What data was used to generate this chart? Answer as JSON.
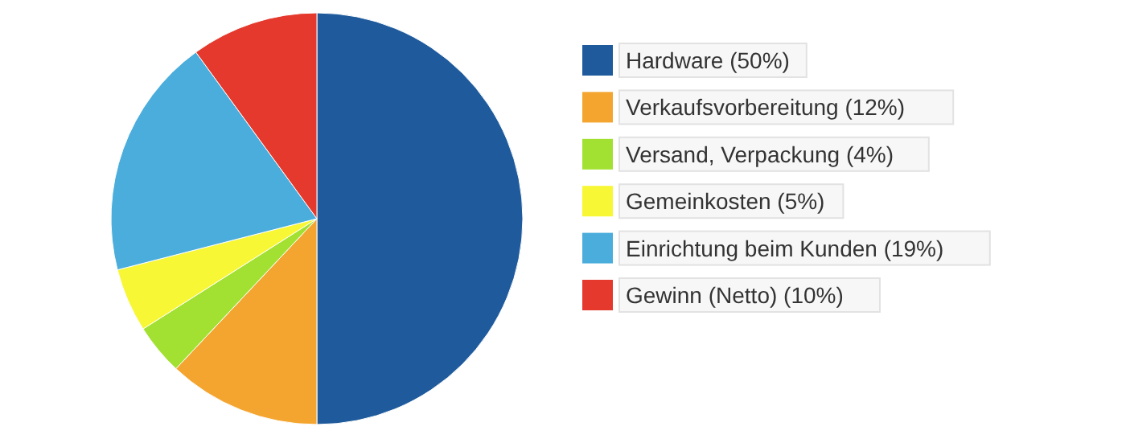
{
  "chart_data": {
    "type": "pie",
    "categories": [
      "Hardware (50%)",
      "Verkaufsvorbereitung (12%)",
      "Versand, Verpackung (4%)",
      "Gemeinkosten (5%)",
      "Einrichtung beim Kunden (19%)",
      "Gewinn (Netto) (10%)"
    ],
    "values": [
      50,
      12,
      4,
      5,
      19,
      10
    ],
    "colors": [
      "#1f5b9c",
      "#f4a52f",
      "#a2e131",
      "#f7f735",
      "#4aaddc",
      "#e4392c"
    ],
    "legend": "right"
  }
}
